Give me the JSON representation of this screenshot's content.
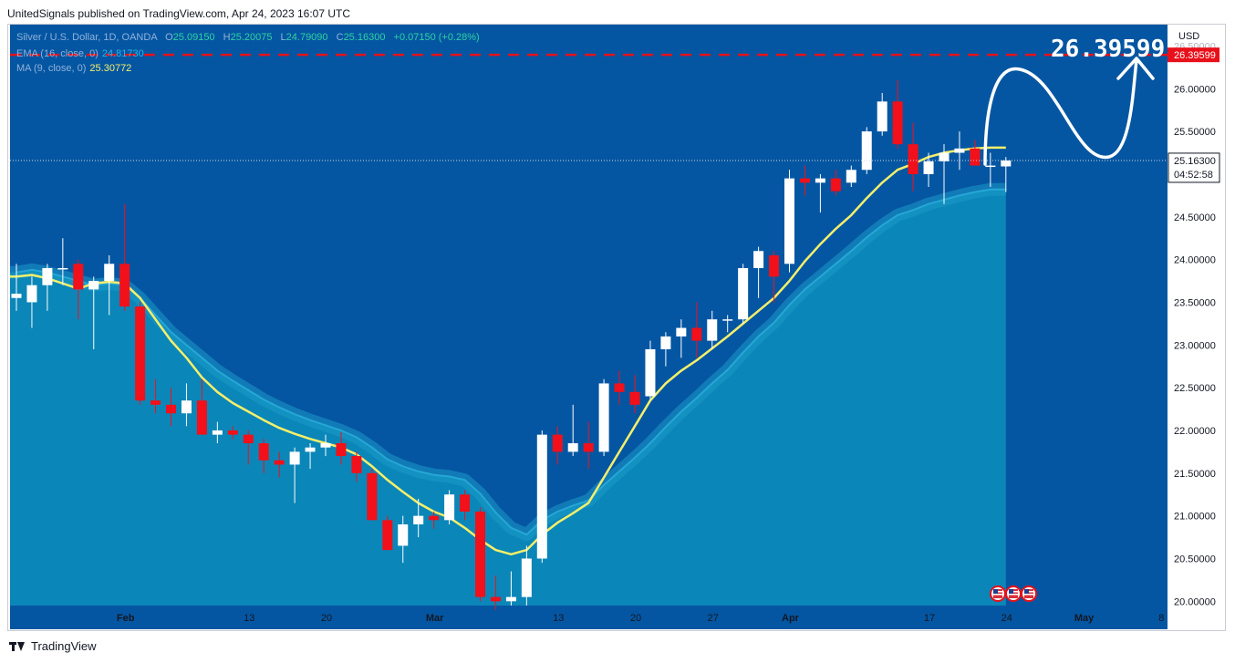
{
  "attribution": "UnitedSignals published on TradingView.com, Apr 24, 2023 16:07 UTC",
  "footer_brand": "TradingView",
  "legend": {
    "symbol": "Silver / U.S. Dollar, 1D, OANDA",
    "o_label": "O",
    "o": "25.09150",
    "h_label": "H",
    "h": "25.20075",
    "l_label": "L",
    "l": "24.79090",
    "c_label": "C",
    "c": "25.16300",
    "change": "+0.07150 (+0.28%)",
    "ema_label": "EMA (16, close, 0)",
    "ema_value": "24.81730",
    "ma_label": "MA (9, close, 0)",
    "ma_value": "25.30772"
  },
  "price_axis": {
    "currency": "USD",
    "target_label": "26.39599",
    "last_price_label": "25.16300",
    "countdown_label": "04:52:58"
  },
  "annotation": {
    "target_text": "26.39599"
  },
  "colors": {
    "background": "#0556a2",
    "ema_fill": "#0b86b8",
    "ema_band": "#1b9bc9",
    "ma_line": "#f5ef6a",
    "up_candle": "#ffffff",
    "down_candle": "#f2101a",
    "target_line": "#e8101a",
    "axis_panel": "#ffffff",
    "axis_text": "#131722"
  },
  "chart_data": {
    "type": "candlestick",
    "ylim": [
      19.95,
      26.75
    ],
    "y_ticks": [
      "20.00000",
      "20.50000",
      "21.00000",
      "21.50000",
      "22.00000",
      "22.50000",
      "23.00000",
      "23.50000",
      "24.00000",
      "24.50000",
      "25.00000",
      "25.50000",
      "26.00000",
      "26.50000"
    ],
    "x_ticks": [
      {
        "label": "Feb",
        "idx": 7
      },
      {
        "label": "13",
        "idx": 15
      },
      {
        "label": "20",
        "idx": 20
      },
      {
        "label": "Mar",
        "idx": 27
      },
      {
        "label": "13",
        "idx": 35
      },
      {
        "label": "20",
        "idx": 40
      },
      {
        "label": "27",
        "idx": 45
      },
      {
        "label": "Apr",
        "idx": 50
      },
      {
        "label": "17",
        "idx": 59
      },
      {
        "label": "24",
        "idx": 64
      },
      {
        "label": "May",
        "idx": 69
      },
      {
        "label": "8",
        "idx": 74
      }
    ],
    "candles": [
      {
        "date": "2023-01-24",
        "o": 23.55,
        "h": 23.95,
        "l": 23.4,
        "c": 23.6
      },
      {
        "date": "2023-01-25",
        "o": 23.5,
        "h": 23.8,
        "l": 23.2,
        "c": 23.7
      },
      {
        "date": "2023-01-26",
        "o": 23.7,
        "h": 23.95,
        "l": 23.4,
        "c": 23.9
      },
      {
        "date": "2023-01-27",
        "o": 23.9,
        "h": 24.25,
        "l": 23.7,
        "c": 23.9
      },
      {
        "date": "2023-01-30",
        "o": 23.95,
        "h": 24.0,
        "l": 23.3,
        "c": 23.65
      },
      {
        "date": "2023-01-31",
        "o": 23.65,
        "h": 23.8,
        "l": 22.95,
        "c": 23.75
      },
      {
        "date": "2023-02-01",
        "o": 23.75,
        "h": 24.05,
        "l": 23.35,
        "c": 23.95
      },
      {
        "date": "2023-02-02",
        "o": 23.95,
        "h": 24.65,
        "l": 23.4,
        "c": 23.45
      },
      {
        "date": "2023-02-03",
        "o": 23.45,
        "h": 23.5,
        "l": 22.3,
        "c": 22.35
      },
      {
        "date": "2023-02-06",
        "o": 22.35,
        "h": 22.6,
        "l": 22.2,
        "c": 22.3
      },
      {
        "date": "2023-02-07",
        "o": 22.3,
        "h": 22.5,
        "l": 22.05,
        "c": 22.2
      },
      {
        "date": "2023-02-08",
        "o": 22.2,
        "h": 22.55,
        "l": 22.05,
        "c": 22.35
      },
      {
        "date": "2023-02-09",
        "o": 22.35,
        "h": 22.6,
        "l": 21.95,
        "c": 21.95
      },
      {
        "date": "2023-02-10",
        "o": 21.95,
        "h": 22.1,
        "l": 21.85,
        "c": 22.0
      },
      {
        "date": "2023-02-13",
        "o": 22.0,
        "h": 22.05,
        "l": 21.9,
        "c": 21.95
      },
      {
        "date": "2023-02-14",
        "o": 21.95,
        "h": 22.0,
        "l": 21.6,
        "c": 21.85
      },
      {
        "date": "2023-02-15",
        "o": 21.85,
        "h": 21.9,
        "l": 21.5,
        "c": 21.65
      },
      {
        "date": "2023-02-16",
        "o": 21.65,
        "h": 21.75,
        "l": 21.45,
        "c": 21.6
      },
      {
        "date": "2023-02-17",
        "o": 21.6,
        "h": 21.8,
        "l": 21.15,
        "c": 21.75
      },
      {
        "date": "2023-02-20",
        "o": 21.75,
        "h": 21.85,
        "l": 21.55,
        "c": 21.8
      },
      {
        "date": "2023-02-21",
        "o": 21.8,
        "h": 21.95,
        "l": 21.7,
        "c": 21.85
      },
      {
        "date": "2023-02-22",
        "o": 21.85,
        "h": 21.98,
        "l": 21.6,
        "c": 21.7
      },
      {
        "date": "2023-02-23",
        "o": 21.7,
        "h": 21.75,
        "l": 21.4,
        "c": 21.5
      },
      {
        "date": "2023-02-24",
        "o": 21.5,
        "h": 21.55,
        "l": 20.95,
        "c": 20.95
      },
      {
        "date": "2023-02-27",
        "o": 20.95,
        "h": 21.0,
        "l": 20.6,
        "c": 20.6
      },
      {
        "date": "2023-02-28",
        "o": 20.65,
        "h": 21.0,
        "l": 20.45,
        "c": 20.9
      },
      {
        "date": "2023-03-01",
        "o": 20.9,
        "h": 21.2,
        "l": 20.75,
        "c": 21.0
      },
      {
        "date": "2023-03-02",
        "o": 21.0,
        "h": 21.05,
        "l": 20.85,
        "c": 20.95
      },
      {
        "date": "2023-03-03",
        "o": 20.95,
        "h": 21.3,
        "l": 20.9,
        "c": 21.25
      },
      {
        "date": "2023-03-06",
        "o": 21.25,
        "h": 21.3,
        "l": 20.95,
        "c": 21.05
      },
      {
        "date": "2023-03-07",
        "o": 21.05,
        "h": 21.1,
        "l": 20.0,
        "c": 20.05
      },
      {
        "date": "2023-03-08",
        "o": 20.05,
        "h": 20.3,
        "l": 19.9,
        "c": 20.0
      },
      {
        "date": "2023-03-09",
        "o": 20.0,
        "h": 20.35,
        "l": 19.95,
        "c": 20.05
      },
      {
        "date": "2023-03-10",
        "o": 20.05,
        "h": 20.65,
        "l": 19.95,
        "c": 20.5
      },
      {
        "date": "2023-03-13",
        "o": 20.5,
        "h": 22.0,
        "l": 20.45,
        "c": 21.95
      },
      {
        "date": "2023-03-14",
        "o": 21.95,
        "h": 22.05,
        "l": 21.6,
        "c": 21.75
      },
      {
        "date": "2023-03-15",
        "o": 21.75,
        "h": 22.3,
        "l": 21.7,
        "c": 21.85
      },
      {
        "date": "2023-03-16",
        "o": 21.85,
        "h": 22.1,
        "l": 21.55,
        "c": 21.75
      },
      {
        "date": "2023-03-17",
        "o": 21.75,
        "h": 22.6,
        "l": 21.7,
        "c": 22.55
      },
      {
        "date": "2023-03-20",
        "o": 22.55,
        "h": 22.7,
        "l": 22.3,
        "c": 22.45
      },
      {
        "date": "2023-03-21",
        "o": 22.45,
        "h": 22.65,
        "l": 22.2,
        "c": 22.3
      },
      {
        "date": "2023-03-22",
        "o": 22.4,
        "h": 23.05,
        "l": 22.35,
        "c": 22.95
      },
      {
        "date": "2023-03-23",
        "o": 22.95,
        "h": 23.15,
        "l": 22.75,
        "c": 23.1
      },
      {
        "date": "2023-03-24",
        "o": 23.1,
        "h": 23.3,
        "l": 22.85,
        "c": 23.2
      },
      {
        "date": "2023-03-27",
        "o": 23.2,
        "h": 23.5,
        "l": 22.85,
        "c": 23.05
      },
      {
        "date": "2023-03-28",
        "o": 23.05,
        "h": 23.4,
        "l": 22.95,
        "c": 23.3
      },
      {
        "date": "2023-03-29",
        "o": 23.3,
        "h": 23.35,
        "l": 23.15,
        "c": 23.3
      },
      {
        "date": "2023-03-30",
        "o": 23.3,
        "h": 23.95,
        "l": 23.25,
        "c": 23.9
      },
      {
        "date": "2023-03-31",
        "o": 23.9,
        "h": 24.15,
        "l": 23.55,
        "c": 24.1
      },
      {
        "date": "2023-04-03",
        "o": 24.05,
        "h": 24.1,
        "l": 23.5,
        "c": 23.8
      },
      {
        "date": "2023-04-04",
        "o": 23.95,
        "h": 25.05,
        "l": 23.85,
        "c": 24.95
      },
      {
        "date": "2023-04-05",
        "o": 24.95,
        "h": 25.1,
        "l": 24.75,
        "c": 24.9
      },
      {
        "date": "2023-04-06",
        "o": 24.9,
        "h": 25.0,
        "l": 24.55,
        "c": 24.95
      },
      {
        "date": "2023-04-07",
        "o": 24.95,
        "h": 25.05,
        "l": 24.75,
        "c": 24.8
      },
      {
        "date": "2023-04-10",
        "o": 24.9,
        "h": 25.1,
        "l": 24.85,
        "c": 25.05
      },
      {
        "date": "2023-04-11",
        "o": 25.05,
        "h": 25.55,
        "l": 25.0,
        "c": 25.5
      },
      {
        "date": "2023-04-12",
        "o": 25.5,
        "h": 25.95,
        "l": 25.45,
        "c": 25.85
      },
      {
        "date": "2023-04-13",
        "o": 25.85,
        "h": 26.1,
        "l": 25.3,
        "c": 25.35
      },
      {
        "date": "2023-04-14",
        "o": 25.35,
        "h": 25.6,
        "l": 24.8,
        "c": 25.0
      },
      {
        "date": "2023-04-17",
        "o": 25.0,
        "h": 25.25,
        "l": 24.85,
        "c": 25.15
      },
      {
        "date": "2023-04-18",
        "o": 25.15,
        "h": 25.35,
        "l": 24.65,
        "c": 25.25
      },
      {
        "date": "2023-04-19",
        "o": 25.25,
        "h": 25.5,
        "l": 25.05,
        "c": 25.3
      },
      {
        "date": "2023-04-20",
        "o": 25.3,
        "h": 25.4,
        "l": 25.15,
        "c": 25.1
      },
      {
        "date": "2023-04-21",
        "o": 25.1,
        "h": 25.25,
        "l": 24.85,
        "c": 25.1
      },
      {
        "date": "2023-04-24",
        "o": 25.09,
        "h": 25.2,
        "l": 24.79,
        "c": 25.16
      }
    ],
    "ema16": [
      23.85,
      23.88,
      23.85,
      23.8,
      23.75,
      23.7,
      23.72,
      23.7,
      23.55,
      23.35,
      23.15,
      23.0,
      22.85,
      22.7,
      22.58,
      22.47,
      22.36,
      22.27,
      22.19,
      22.12,
      22.06,
      22.0,
      21.92,
      21.8,
      21.66,
      21.58,
      21.52,
      21.48,
      21.46,
      21.42,
      21.26,
      21.04,
      20.86,
      20.78,
      20.95,
      21.05,
      21.12,
      21.18,
      21.36,
      21.52,
      21.68,
      21.85,
      22.04,
      22.22,
      22.38,
      22.55,
      22.71,
      22.91,
      23.1,
      23.26,
      23.47,
      23.65,
      23.8,
      23.95,
      24.1,
      24.26,
      24.4,
      24.52,
      24.58,
      24.65,
      24.7,
      24.75,
      24.79,
      24.82,
      24.82
    ],
    "ma9": [
      23.8,
      23.82,
      23.78,
      23.72,
      23.66,
      23.72,
      23.74,
      23.72,
      23.55,
      23.3,
      23.05,
      22.85,
      22.62,
      22.45,
      22.32,
      22.22,
      22.12,
      22.03,
      21.96,
      21.9,
      21.85,
      21.8,
      21.72,
      21.58,
      21.42,
      21.28,
      21.15,
      21.05,
      20.98,
      20.86,
      20.72,
      20.6,
      20.55,
      20.6,
      20.78,
      20.92,
      21.03,
      21.15,
      21.45,
      21.75,
      22.05,
      22.35,
      22.55,
      22.7,
      22.82,
      22.96,
      23.1,
      23.25,
      23.4,
      23.55,
      23.75,
      23.98,
      24.18,
      24.36,
      24.52,
      24.72,
      24.9,
      25.05,
      25.12,
      25.2,
      25.25,
      25.28,
      25.3,
      25.31,
      25.31
    ],
    "target": 26.39599
  }
}
